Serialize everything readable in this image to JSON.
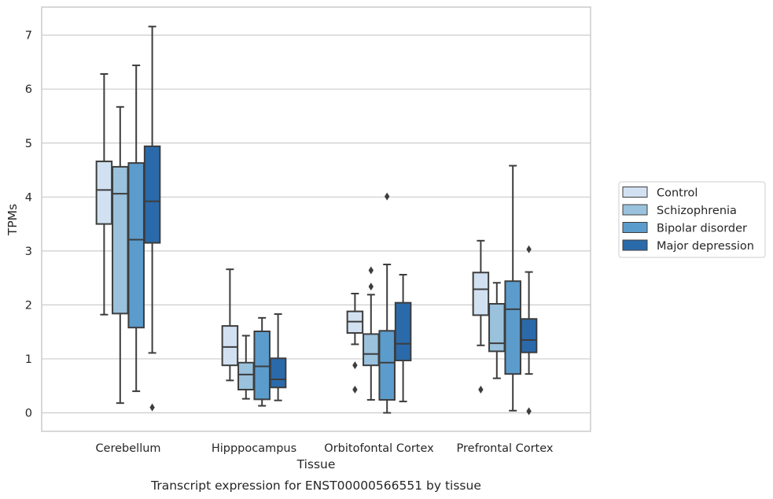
{
  "chart_data": {
    "type": "boxplot",
    "xlabel": "Tissue",
    "ylabel": "TPMs",
    "caption": "Transcript expression for ENST00000566551 by tissue",
    "ylim": [
      -0.35,
      7.55
    ],
    "yticks": [
      0,
      1,
      2,
      3,
      4,
      5,
      6,
      7
    ],
    "grid": "horizontal",
    "legend_position": "right",
    "categories": [
      "Cerebellum",
      "Hipppocampus",
      "Orbitofontal Cortex",
      "Prefrontal Cortex"
    ],
    "series": [
      {
        "name": "Control",
        "color": "#d2e1f1",
        "boxes": [
          {
            "whisker_low": 1.82,
            "q1": 3.5,
            "median": 4.13,
            "q3": 4.66,
            "whisker_high": 6.28,
            "outliers": []
          },
          {
            "whisker_low": 0.6,
            "q1": 0.88,
            "median": 1.22,
            "q3": 1.61,
            "whisker_high": 2.66,
            "outliers": []
          },
          {
            "whisker_low": 1.27,
            "q1": 1.48,
            "median": 1.69,
            "q3": 1.88,
            "whisker_high": 2.21,
            "outliers": [
              0.88,
              0.43
            ]
          },
          {
            "whisker_low": 1.25,
            "q1": 1.81,
            "median": 2.29,
            "q3": 2.6,
            "whisker_high": 3.19,
            "outliers": [
              0.43
            ]
          }
        ]
      },
      {
        "name": "Schizophrenia",
        "color": "#9ac2dd",
        "boxes": [
          {
            "whisker_low": 0.18,
            "q1": 1.84,
            "median": 4.06,
            "q3": 4.56,
            "whisker_high": 5.67,
            "outliers": []
          },
          {
            "whisker_low": 0.26,
            "q1": 0.43,
            "median": 0.71,
            "q3": 0.93,
            "whisker_high": 1.43,
            "outliers": []
          },
          {
            "whisker_low": 0.24,
            "q1": 0.88,
            "median": 1.09,
            "q3": 1.46,
            "whisker_high": 2.19,
            "outliers": [
              2.64,
              2.34
            ]
          },
          {
            "whisker_low": 0.64,
            "q1": 1.14,
            "median": 1.29,
            "q3": 2.02,
            "whisker_high": 2.41,
            "outliers": []
          }
        ]
      },
      {
        "name": "Bipolar disorder",
        "color": "#5b9ccd",
        "boxes": [
          {
            "whisker_low": 0.4,
            "q1": 1.58,
            "median": 3.21,
            "q3": 4.63,
            "whisker_high": 6.44,
            "outliers": []
          },
          {
            "whisker_low": 0.13,
            "q1": 0.25,
            "median": 0.86,
            "q3": 1.51,
            "whisker_high": 1.76,
            "outliers": []
          },
          {
            "whisker_low": 0.0,
            "q1": 0.24,
            "median": 0.93,
            "q3": 1.52,
            "whisker_high": 2.75,
            "outliers": [
              4.01
            ]
          },
          {
            "whisker_low": 0.04,
            "q1": 0.72,
            "median": 1.92,
            "q3": 2.44,
            "whisker_high": 4.58,
            "outliers": []
          }
        ]
      },
      {
        "name": "Major depression",
        "color": "#2a6aab",
        "boxes": [
          {
            "whisker_low": 1.11,
            "q1": 3.15,
            "median": 3.92,
            "q3": 4.94,
            "whisker_high": 7.16,
            "outliers": [
              0.1
            ]
          },
          {
            "whisker_low": 0.23,
            "q1": 0.47,
            "median": 0.62,
            "q3": 1.01,
            "whisker_high": 1.83,
            "outliers": []
          },
          {
            "whisker_low": 0.21,
            "q1": 0.97,
            "median": 1.28,
            "q3": 2.04,
            "whisker_high": 2.56,
            "outliers": []
          },
          {
            "whisker_low": 0.72,
            "q1": 1.12,
            "median": 1.35,
            "q3": 1.74,
            "whisker_high": 2.61,
            "outliers": [
              3.03,
              0.03
            ]
          }
        ]
      }
    ]
  },
  "colors": {
    "grid": "#cccccc",
    "frame": "#cccccc",
    "box_edge": "#3d3d3d",
    "text": "#262626"
  }
}
